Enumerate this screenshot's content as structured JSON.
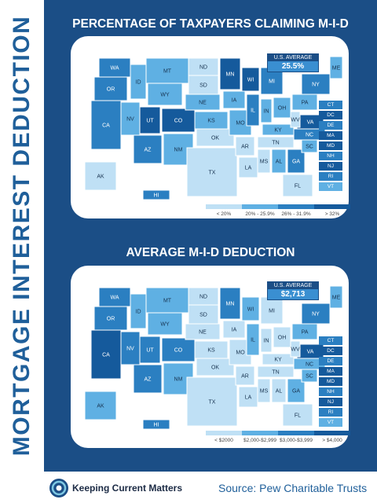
{
  "side_title": "MORTGAGE INTEREST DEDUCTION",
  "colors": {
    "panel": "#1b4e86",
    "lvl1": "#bfe0f5",
    "lvl2": "#5fb0e3",
    "lvl3": "#2b7fc1",
    "lvl4": "#155a9c"
  },
  "maps": [
    {
      "title": "PERCENTAGE OF TAXPAYERS CLAIMING M-I-D",
      "us_average_label": "U.S. AVERAGE",
      "us_average_value": "25.5%",
      "legend": [
        {
          "label": "< 20%",
          "color": "#bfe0f5"
        },
        {
          "label": "20% - 25.9%",
          "color": "#5fb0e3"
        },
        {
          "label": "26% - 31.9%",
          "color": "#2b7fc1"
        },
        {
          "label": "> 32%",
          "color": "#155a9c"
        }
      ],
      "small_states": [
        "CT",
        "DC",
        "DE",
        "MA",
        "MD",
        "NH",
        "NJ",
        "RI",
        "VT"
      ],
      "states": [
        "WA",
        "OR",
        "CA",
        "ID",
        "NV",
        "MT",
        "WY",
        "UT",
        "CO",
        "AZ",
        "NM",
        "ND",
        "SD",
        "NE",
        "KS",
        "OK",
        "TX",
        "MN",
        "IA",
        "MO",
        "AR",
        "LA",
        "WI",
        "IL",
        "MI",
        "IN",
        "OH",
        "KY",
        "TN",
        "MS",
        "AL",
        "GA",
        "FL",
        "SC",
        "NC",
        "VA",
        "WV",
        "PA",
        "NY",
        "ME",
        "AK",
        "HI"
      ]
    },
    {
      "title": "AVERAGE M-I-D DEDUCTION",
      "us_average_label": "U.S. AVERAGE",
      "us_average_value": "$2,713",
      "legend": [
        {
          "label": "< $2000",
          "color": "#bfe0f5"
        },
        {
          "label": "$2,000-$2,999",
          "color": "#5fb0e3"
        },
        {
          "label": "$3,000-$3,999",
          "color": "#2b7fc1"
        },
        {
          "label": "> $4,000",
          "color": "#155a9c"
        }
      ],
      "small_states": [
        "CT",
        "DC",
        "DE",
        "MA",
        "MD",
        "NH",
        "NJ",
        "RI",
        "VT"
      ],
      "states": [
        "WA",
        "OR",
        "CA",
        "ID",
        "NV",
        "MT",
        "WY",
        "UT",
        "CO",
        "AZ",
        "NM",
        "ND",
        "SD",
        "NE",
        "KS",
        "OK",
        "TX",
        "MN",
        "IA",
        "MO",
        "AR",
        "LA",
        "WI",
        "IL",
        "MI",
        "IN",
        "OH",
        "KY",
        "TN",
        "MS",
        "AL",
        "GA",
        "FL",
        "SC",
        "NC",
        "VA",
        "WV",
        "PA",
        "NY",
        "ME",
        "AK",
        "HI"
      ]
    }
  ],
  "footer": {
    "logo_text": "Keeping Current Matters",
    "source": "Source: Pew Charitable Trusts"
  }
}
